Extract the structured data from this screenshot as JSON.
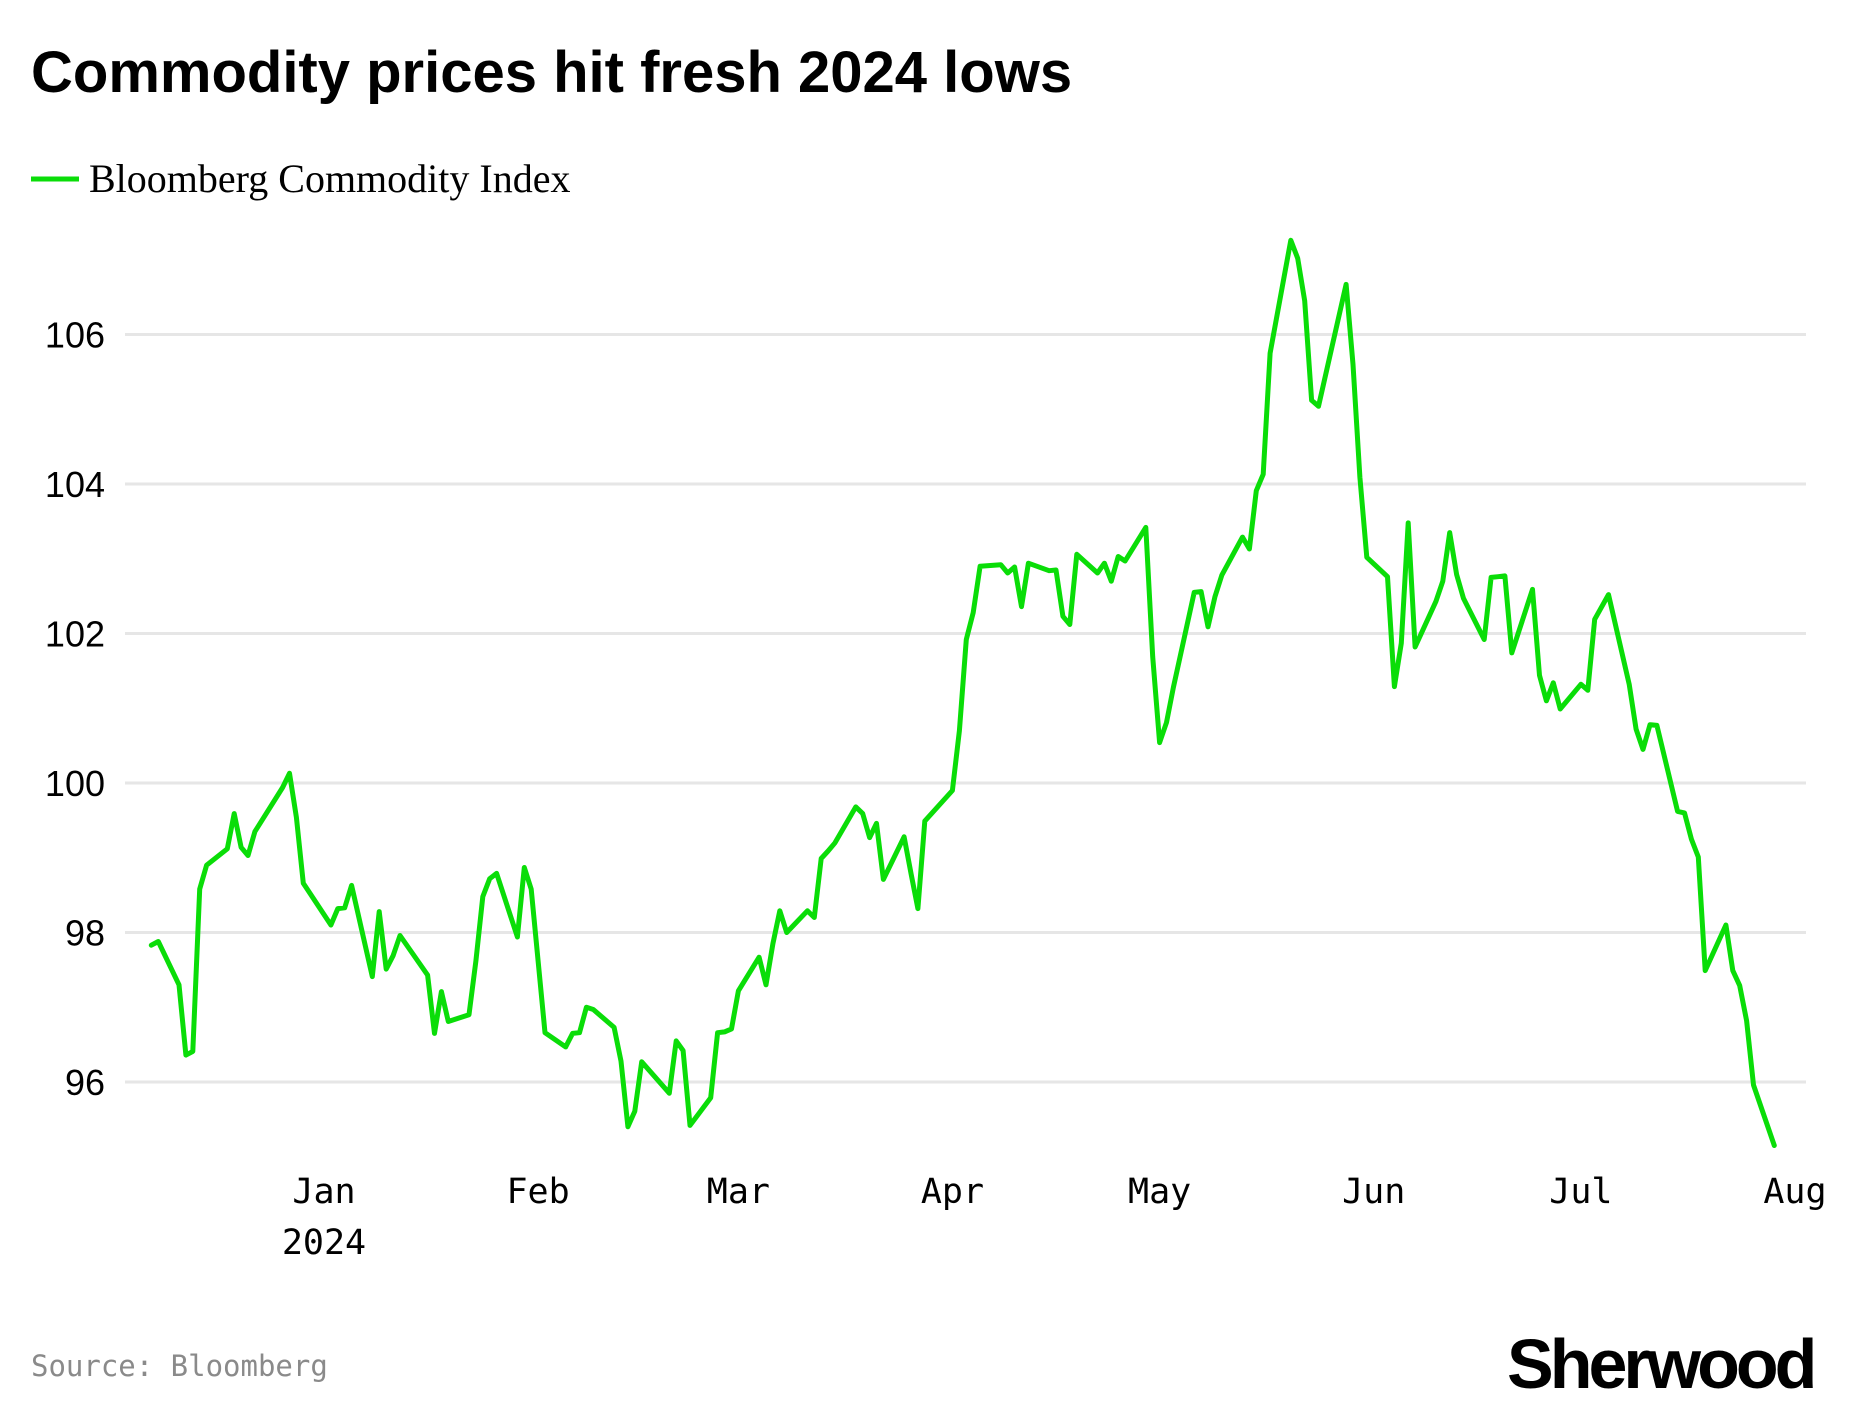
{
  "title": "Commodity prices hit fresh 2024 lows",
  "source": "Source: Bloomberg",
  "logo": "Sherwood",
  "chart_data": {
    "type": "line",
    "title": "Commodity prices hit fresh 2024 lows",
    "xlabel": "",
    "ylabel": "",
    "ylim": [
      95,
      107.5
    ],
    "grid": "horizontal",
    "legend_position": "top-left",
    "yticks": [
      96,
      98,
      100,
      102,
      104,
      106
    ],
    "xticks": [
      {
        "label": "Jan",
        "sublabel": "2024",
        "date": "2024-01-01"
      },
      {
        "label": "Feb",
        "date": "2024-02-01"
      },
      {
        "label": "Mar",
        "date": "2024-03-01"
      },
      {
        "label": "Apr",
        "date": "2024-04-01"
      },
      {
        "label": "May",
        "date": "2024-05-01"
      },
      {
        "label": "Jun",
        "date": "2024-06-01"
      },
      {
        "label": "Jul",
        "date": "2024-07-01"
      },
      {
        "label": "Aug",
        "date": "2024-08-01"
      }
    ],
    "series": [
      {
        "name": "Bloomberg Commodity Index",
        "color": "#0ADD08",
        "points": [
          [
            "2023-12-07",
            97.83
          ],
          [
            "2023-12-08",
            97.88
          ],
          [
            "2023-12-11",
            97.3
          ],
          [
            "2023-12-12",
            96.36
          ],
          [
            "2023-12-13",
            96.41
          ],
          [
            "2023-12-14",
            98.58
          ],
          [
            "2023-12-15",
            98.9
          ],
          [
            "2023-12-18",
            99.12
          ],
          [
            "2023-12-19",
            99.59
          ],
          [
            "2023-12-20",
            99.14
          ],
          [
            "2023-12-21",
            99.03
          ],
          [
            "2023-12-22",
            99.35
          ],
          [
            "2023-12-26",
            99.94
          ],
          [
            "2023-12-27",
            100.13
          ],
          [
            "2023-12-28",
            99.54
          ],
          [
            "2023-12-29",
            98.66
          ],
          [
            "2024-01-02",
            98.1
          ],
          [
            "2024-01-03",
            98.32
          ],
          [
            "2024-01-04",
            98.33
          ],
          [
            "2024-01-05",
            98.63
          ],
          [
            "2024-01-08",
            97.41
          ],
          [
            "2024-01-09",
            98.28
          ],
          [
            "2024-01-10",
            97.51
          ],
          [
            "2024-01-11",
            97.69
          ],
          [
            "2024-01-12",
            97.96
          ],
          [
            "2024-01-16",
            97.43
          ],
          [
            "2024-01-17",
            96.65
          ],
          [
            "2024-01-18",
            97.21
          ],
          [
            "2024-01-19",
            96.81
          ],
          [
            "2024-01-22",
            96.9
          ],
          [
            "2024-01-23",
            97.62
          ],
          [
            "2024-01-24",
            98.48
          ],
          [
            "2024-01-25",
            98.72
          ],
          [
            "2024-01-26",
            98.79
          ],
          [
            "2024-01-29",
            97.94
          ],
          [
            "2024-01-30",
            98.87
          ],
          [
            "2024-01-31",
            98.58
          ],
          [
            "2024-02-02",
            96.66
          ],
          [
            "2024-02-05",
            96.47
          ],
          [
            "2024-02-06",
            96.65
          ],
          [
            "2024-02-07",
            96.66
          ],
          [
            "2024-02-08",
            97.0
          ],
          [
            "2024-02-09",
            96.97
          ],
          [
            "2024-02-12",
            96.73
          ],
          [
            "2024-02-13",
            96.28
          ],
          [
            "2024-02-14",
            95.4
          ],
          [
            "2024-02-15",
            95.61
          ],
          [
            "2024-02-16",
            96.27
          ],
          [
            "2024-02-20",
            95.85
          ],
          [
            "2024-02-21",
            96.55
          ],
          [
            "2024-02-22",
            96.42
          ],
          [
            "2024-02-23",
            95.42
          ],
          [
            "2024-02-26",
            95.79
          ],
          [
            "2024-02-27",
            96.66
          ],
          [
            "2024-02-28",
            96.67
          ],
          [
            "2024-02-29",
            96.71
          ],
          [
            "2024-03-01",
            97.22
          ],
          [
            "2024-03-04",
            97.67
          ],
          [
            "2024-03-05",
            97.3
          ],
          [
            "2024-03-06",
            97.85
          ],
          [
            "2024-03-07",
            98.29
          ],
          [
            "2024-03-08",
            98.0
          ],
          [
            "2024-03-11",
            98.29
          ],
          [
            "2024-03-12",
            98.2
          ],
          [
            "2024-03-13",
            98.99
          ],
          [
            "2024-03-14",
            99.09
          ],
          [
            "2024-03-15",
            99.2
          ],
          [
            "2024-03-18",
            99.68
          ],
          [
            "2024-03-19",
            99.59
          ],
          [
            "2024-03-20",
            99.27
          ],
          [
            "2024-03-21",
            99.46
          ],
          [
            "2024-03-22",
            98.71
          ],
          [
            "2024-03-25",
            99.28
          ],
          [
            "2024-03-26",
            98.79
          ],
          [
            "2024-03-27",
            98.32
          ],
          [
            "2024-03-28",
            99.49
          ],
          [
            "2024-04-01",
            99.9
          ],
          [
            "2024-04-02",
            100.7
          ],
          [
            "2024-04-03",
            101.92
          ],
          [
            "2024-04-04",
            102.28
          ],
          [
            "2024-04-05",
            102.9
          ],
          [
            "2024-04-08",
            102.92
          ],
          [
            "2024-04-09",
            102.81
          ],
          [
            "2024-04-10",
            102.89
          ],
          [
            "2024-04-11",
            102.36
          ],
          [
            "2024-04-12",
            102.94
          ],
          [
            "2024-04-15",
            102.84
          ],
          [
            "2024-04-16",
            102.85
          ],
          [
            "2024-04-17",
            102.23
          ],
          [
            "2024-04-18",
            102.12
          ],
          [
            "2024-04-19",
            103.06
          ],
          [
            "2024-04-22",
            102.81
          ],
          [
            "2024-04-23",
            102.94
          ],
          [
            "2024-04-24",
            102.7
          ],
          [
            "2024-04-25",
            103.03
          ],
          [
            "2024-04-26",
            102.97
          ],
          [
            "2024-04-29",
            103.42
          ],
          [
            "2024-04-30",
            101.69
          ],
          [
            "2024-05-01",
            100.54
          ],
          [
            "2024-05-02",
            100.81
          ],
          [
            "2024-05-03",
            101.28
          ],
          [
            "2024-05-06",
            102.55
          ],
          [
            "2024-05-07",
            102.56
          ],
          [
            "2024-05-08",
            102.09
          ],
          [
            "2024-05-09",
            102.49
          ],
          [
            "2024-05-10",
            102.78
          ],
          [
            "2024-05-13",
            103.29
          ],
          [
            "2024-05-14",
            103.13
          ],
          [
            "2024-05-15",
            103.91
          ],
          [
            "2024-05-16",
            104.13
          ],
          [
            "2024-05-17",
            105.75
          ],
          [
            "2024-05-20",
            107.26
          ],
          [
            "2024-05-21",
            107.02
          ],
          [
            "2024-05-22",
            106.45
          ],
          [
            "2024-05-23",
            105.12
          ],
          [
            "2024-05-24",
            105.04
          ],
          [
            "2024-05-28",
            106.67
          ],
          [
            "2024-05-29",
            105.6
          ],
          [
            "2024-05-30",
            104.09
          ],
          [
            "2024-05-31",
            103.02
          ],
          [
            "2024-06-03",
            102.76
          ],
          [
            "2024-06-04",
            101.29
          ],
          [
            "2024-06-05",
            101.87
          ],
          [
            "2024-06-06",
            103.48
          ],
          [
            "2024-06-07",
            101.82
          ],
          [
            "2024-06-10",
            102.43
          ],
          [
            "2024-06-11",
            102.7
          ],
          [
            "2024-06-12",
            103.35
          ],
          [
            "2024-06-13",
            102.79
          ],
          [
            "2024-06-14",
            102.47
          ],
          [
            "2024-06-17",
            101.92
          ],
          [
            "2024-06-18",
            102.75
          ],
          [
            "2024-06-19",
            102.76
          ],
          [
            "2024-06-20",
            102.77
          ],
          [
            "2024-06-21",
            101.74
          ],
          [
            "2024-06-24",
            102.59
          ],
          [
            "2024-06-25",
            101.44
          ],
          [
            "2024-06-26",
            101.1
          ],
          [
            "2024-06-27",
            101.34
          ],
          [
            "2024-06-28",
            100.99
          ],
          [
            "2024-07-01",
            101.32
          ],
          [
            "2024-07-02",
            101.24
          ],
          [
            "2024-07-03",
            102.19
          ],
          [
            "2024-07-05",
            102.52
          ],
          [
            "2024-07-08",
            101.32
          ],
          [
            "2024-07-09",
            100.72
          ],
          [
            "2024-07-10",
            100.45
          ],
          [
            "2024-07-11",
            100.78
          ],
          [
            "2024-07-12",
            100.77
          ],
          [
            "2024-07-15",
            99.62
          ],
          [
            "2024-07-16",
            99.6
          ],
          [
            "2024-07-17",
            99.25
          ],
          [
            "2024-07-18",
            99.01
          ],
          [
            "2024-07-19",
            97.49
          ],
          [
            "2024-07-22",
            98.1
          ],
          [
            "2024-07-23",
            97.49
          ],
          [
            "2024-07-24",
            97.29
          ],
          [
            "2024-07-25",
            96.82
          ],
          [
            "2024-07-26",
            95.96
          ],
          [
            "2024-07-29",
            95.15
          ]
        ]
      }
    ]
  }
}
